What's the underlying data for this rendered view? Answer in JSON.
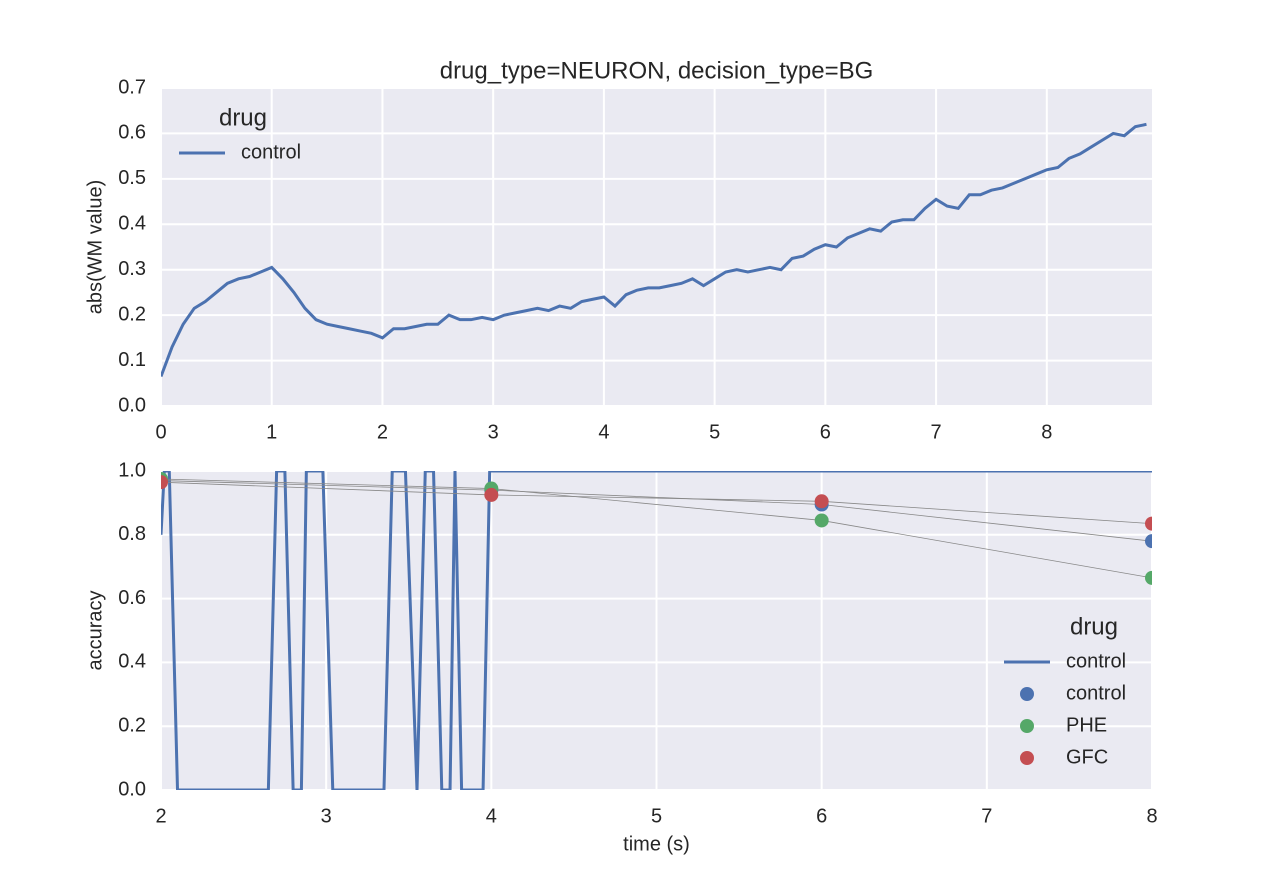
{
  "chart_data": [
    {
      "type": "line",
      "title": "drug_type=NEURON, decision_type=BG",
      "ylabel": "abs(WM value)",
      "xlim": [
        0,
        8.95
      ],
      "xticks": [
        0,
        1,
        2,
        3,
        4,
        5,
        6,
        7,
        8
      ],
      "ylim": [
        0,
        0.7
      ],
      "yticks": [
        {
          "value": 0,
          "label": "0.0"
        },
        0.1,
        0.2,
        0.3,
        0.4,
        0.5,
        0.6,
        0.7
      ],
      "grid": true,
      "legend": "upper left",
      "legend_title": "drug",
      "series": [
        {
          "name": "control",
          "color": "#4c72b0",
          "type": "line",
          "x": [
            0,
            0.1,
            0.2,
            0.3,
            0.4,
            0.5,
            0.6,
            0.7,
            0.8,
            0.9,
            1,
            1.1,
            1.2,
            1.3,
            1.4,
            1.5,
            1.6,
            1.7,
            1.8,
            1.9,
            2,
            2.1,
            2.2,
            2.3,
            2.4,
            2.5,
            2.6,
            2.7,
            2.8,
            2.9,
            3,
            3.1,
            3.2,
            3.3,
            3.4,
            3.5,
            3.6,
            3.7,
            3.8,
            3.9,
            4,
            4.1,
            4.2,
            4.3,
            4.4,
            4.5,
            4.6,
            4.7,
            4.8,
            4.9,
            5,
            5.1,
            5.2,
            5.3,
            5.4,
            5.5,
            5.6,
            5.7,
            5.8,
            5.9,
            6,
            6.1,
            6.2,
            6.3,
            6.4,
            6.5,
            6.6,
            6.7,
            6.8,
            6.9,
            7,
            7.1,
            7.2,
            7.3,
            7.4,
            7.5,
            7.6,
            7.7,
            7.8,
            7.9,
            8,
            8.1,
            8.2,
            8.3,
            8.4,
            8.5,
            8.6,
            8.7,
            8.8,
            8.9
          ],
          "values": [
            0.065,
            0.13,
            0.18,
            0.215,
            0.23,
            0.25,
            0.27,
            0.28,
            0.285,
            0.295,
            0.305,
            0.28,
            0.25,
            0.215,
            0.19,
            0.18,
            0.175,
            0.17,
            0.165,
            0.16,
            0.15,
            0.17,
            0.17,
            0.175,
            0.18,
            0.18,
            0.2,
            0.19,
            0.19,
            0.195,
            0.19,
            0.2,
            0.205,
            0.21,
            0.215,
            0.21,
            0.22,
            0.215,
            0.23,
            0.235,
            0.24,
            0.22,
            0.245,
            0.255,
            0.26,
            0.26,
            0.265,
            0.27,
            0.28,
            0.265,
            0.28,
            0.295,
            0.3,
            0.295,
            0.3,
            0.305,
            0.3,
            0.325,
            0.33,
            0.345,
            0.355,
            0.35,
            0.37,
            0.38,
            0.39,
            0.385,
            0.405,
            0.41,
            0.41,
            0.435,
            0.455,
            0.44,
            0.435,
            0.465,
            0.465,
            0.475,
            0.48,
            0.49,
            0.5,
            0.51,
            0.52,
            0.525,
            0.545,
            0.555,
            0.57,
            0.585,
            0.6,
            0.595,
            0.615,
            0.62
          ]
        }
      ]
    },
    {
      "type": "line",
      "xlabel": "time (s)",
      "ylabel": "accuracy",
      "xlim": [
        2,
        8
      ],
      "xticks": [
        2,
        3,
        4,
        5,
        6,
        7,
        8
      ],
      "ylim": [
        0,
        1
      ],
      "yticks": [
        {
          "value": 0,
          "label": "0.0"
        },
        0.2,
        0.4,
        0.6,
        0.8,
        {
          "value": 1,
          "label": "1.0"
        }
      ],
      "grid": true,
      "legend": "lower right",
      "legend_title": "drug",
      "series": [
        {
          "name": "control",
          "color": "#4c72b0",
          "type": "line",
          "x": [
            2,
            2.02,
            2.05,
            2.1,
            2.65,
            2.7,
            2.75,
            2.8,
            2.85,
            2.88,
            2.98,
            3.04,
            3.35,
            3.4,
            3.48,
            3.55,
            3.6,
            3.65,
            3.7,
            3.75,
            3.78,
            3.82,
            3.95,
            3.99,
            8
          ],
          "values": [
            0.8,
            1,
            1,
            0,
            0,
            1,
            1,
            0,
            0,
            1,
            1,
            0,
            0,
            1,
            1,
            0,
            1,
            1,
            0,
            0,
            1,
            0,
            0,
            1,
            1
          ]
        },
        {
          "name": "control",
          "color": "#4c72b0",
          "type": "point",
          "x": [
            2,
            4,
            6,
            8
          ],
          "values": [
            0.97,
            0.94,
            0.895,
            0.78
          ]
        },
        {
          "name": "PHE",
          "color": "#55a868",
          "type": "point",
          "x": [
            2,
            4,
            6,
            8
          ],
          "values": [
            0.975,
            0.945,
            0.845,
            0.665
          ]
        },
        {
          "name": "GFC",
          "color": "#c44e52",
          "type": "point",
          "x": [
            2,
            4,
            6,
            8
          ],
          "values": [
            0.965,
            0.925,
            0.905,
            0.835
          ]
        }
      ]
    }
  ]
}
